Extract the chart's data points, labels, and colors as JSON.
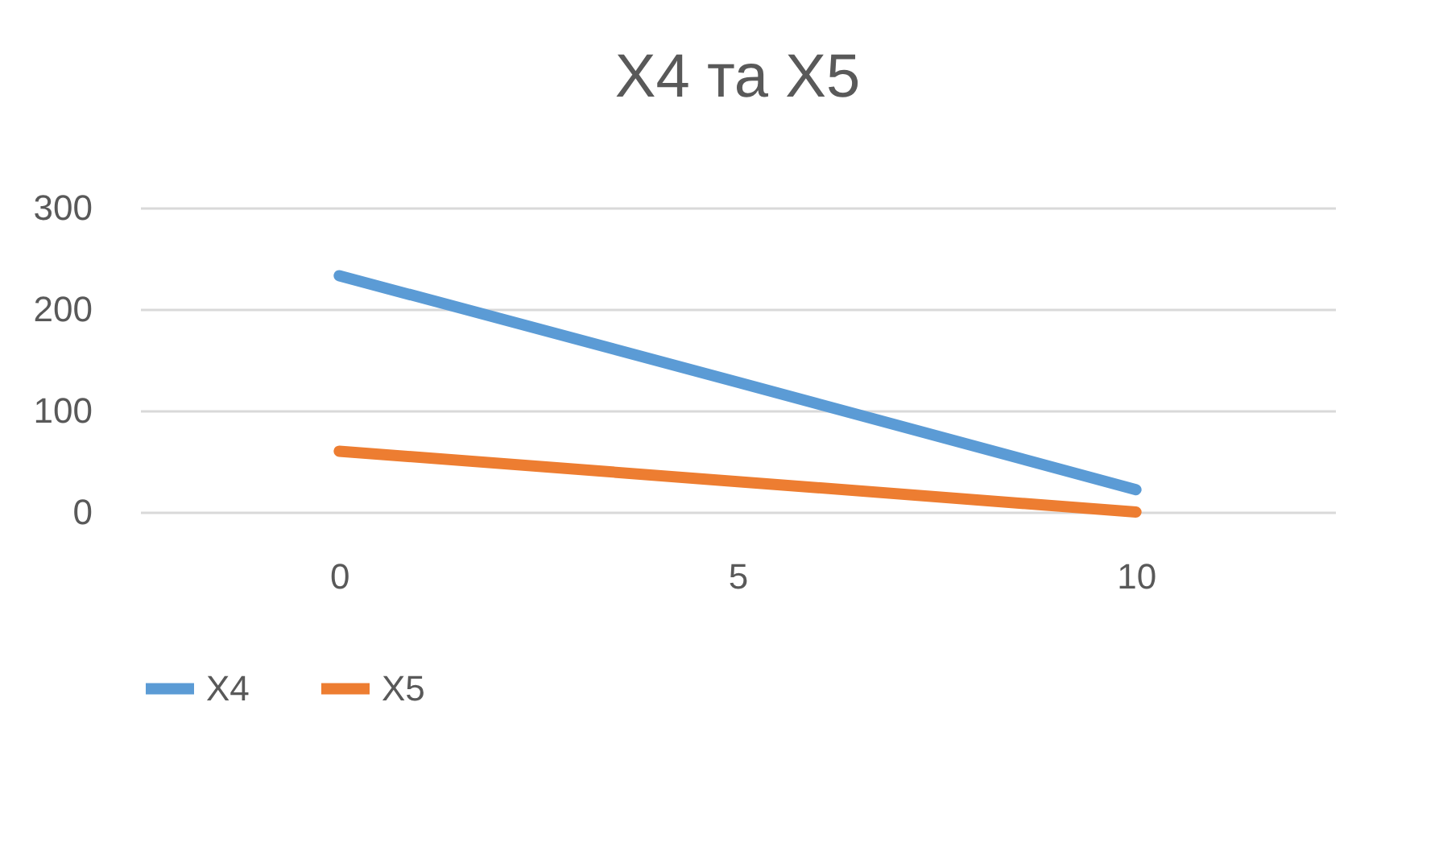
{
  "chart_data": {
    "type": "line",
    "title": "X4 та X5",
    "categories": [
      "0",
      "5",
      "10"
    ],
    "series": [
      {
        "name": "X4",
        "color": "#5b9bd5",
        "values": [
          233,
          128,
          22
        ]
      },
      {
        "name": "X5",
        "color": "#ed7d31",
        "values": [
          60,
          30,
          0
        ]
      }
    ],
    "ylim": [
      0,
      300
    ],
    "yticks": [
      0,
      100,
      200,
      300
    ],
    "grid": "y",
    "legend": "bottom",
    "marker": "none",
    "line_style": "solid"
  }
}
